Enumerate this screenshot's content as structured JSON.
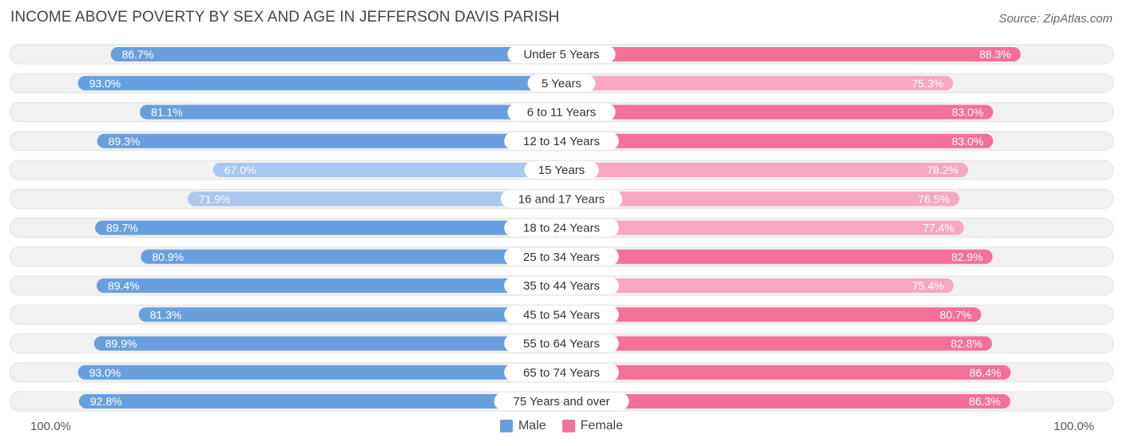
{
  "header": {
    "title": "INCOME ABOVE POVERTY BY SEX AND AGE IN JEFFERSON DAVIS PARISH",
    "source": "Source: ZipAtlas.com"
  },
  "colors": {
    "male_strong": "#6a9fdd",
    "male_light": "#a9c7ef",
    "female_strong": "#f47099",
    "female_light": "#f7a8c1",
    "track": "#f1f1f1"
  },
  "chart_data": {
    "type": "bar",
    "orientation": "horizontal-diverging",
    "categories": [
      "Under 5 Years",
      "5 Years",
      "6 to 11 Years",
      "12 to 14 Years",
      "15 Years",
      "16 and 17 Years",
      "18 to 24 Years",
      "25 to 34 Years",
      "35 to 44 Years",
      "45 to 54 Years",
      "55 to 64 Years",
      "65 to 74 Years",
      "75 Years and over"
    ],
    "series": [
      {
        "name": "Male",
        "values": [
          86.7,
          93.0,
          81.1,
          89.3,
          67.0,
          71.9,
          89.7,
          80.9,
          89.4,
          81.3,
          89.9,
          93.0,
          92.8
        ],
        "labels": [
          "86.7%",
          "93.0%",
          "81.1%",
          "89.3%",
          "67.0%",
          "71.9%",
          "89.7%",
          "80.9%",
          "89.4%",
          "81.3%",
          "89.9%",
          "93.0%",
          "92.8%"
        ]
      },
      {
        "name": "Female",
        "values": [
          88.3,
          75.3,
          83.0,
          83.0,
          78.2,
          76.5,
          77.4,
          82.9,
          75.4,
          80.7,
          82.8,
          86.4,
          86.3
        ],
        "labels": [
          "88.3%",
          "75.3%",
          "83.0%",
          "83.0%",
          "78.2%",
          "76.5%",
          "77.4%",
          "82.9%",
          "75.4%",
          "80.7%",
          "82.8%",
          "86.4%",
          "86.3%"
        ]
      }
    ],
    "xlim": [
      0,
      100
    ],
    "axis_left_label": "100.0%",
    "axis_right_label": "100.0%",
    "legend_position": "bottom-center"
  }
}
